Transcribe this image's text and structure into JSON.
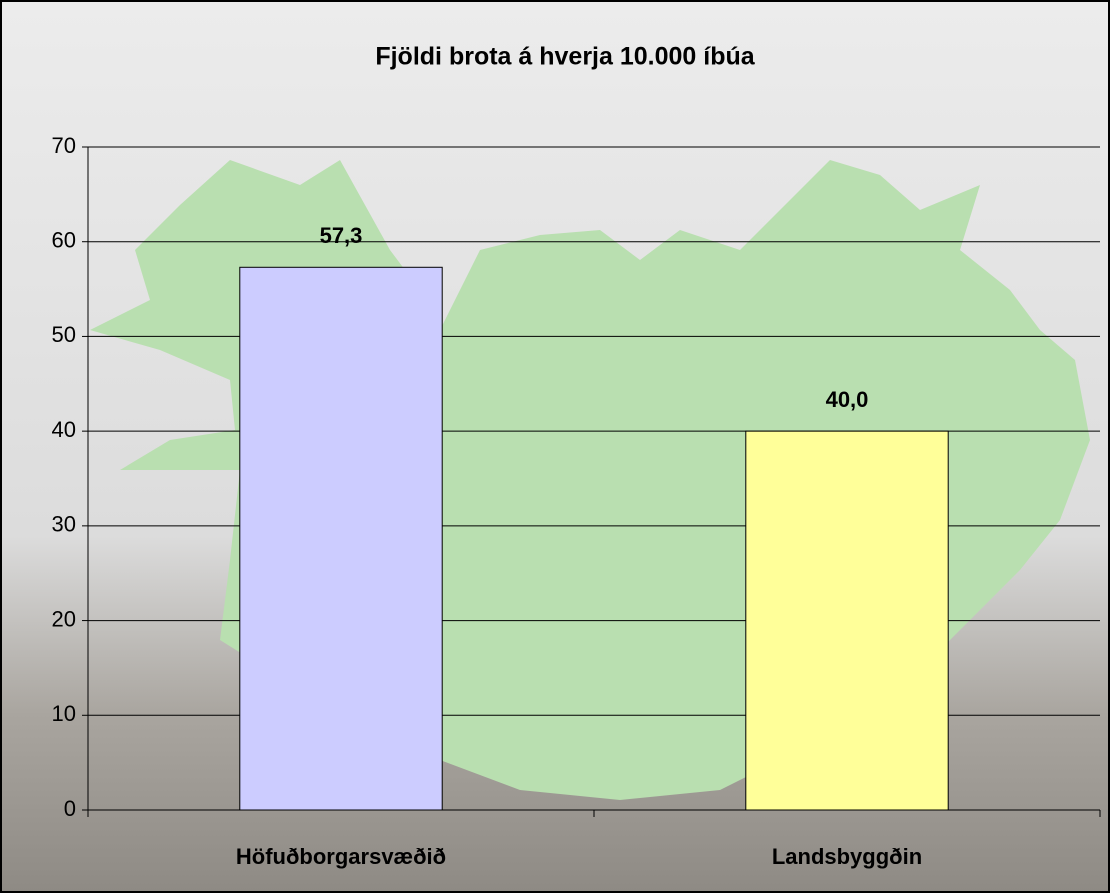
{
  "chart_data": {
    "type": "bar",
    "title": "Fjöldi brota á hverja 10.000 íbúa",
    "categories": [
      "Höfuðborgarsvæðið",
      "Landsbyggðin"
    ],
    "values": [
      57.3,
      40.0
    ],
    "value_labels": [
      "57,3",
      "40,0"
    ],
    "colors": [
      "#ccccff",
      "#ffff99"
    ],
    "ylim": [
      0,
      70
    ],
    "yticks": [
      0,
      10,
      20,
      30,
      40,
      50,
      60,
      70
    ],
    "grid": true
  }
}
